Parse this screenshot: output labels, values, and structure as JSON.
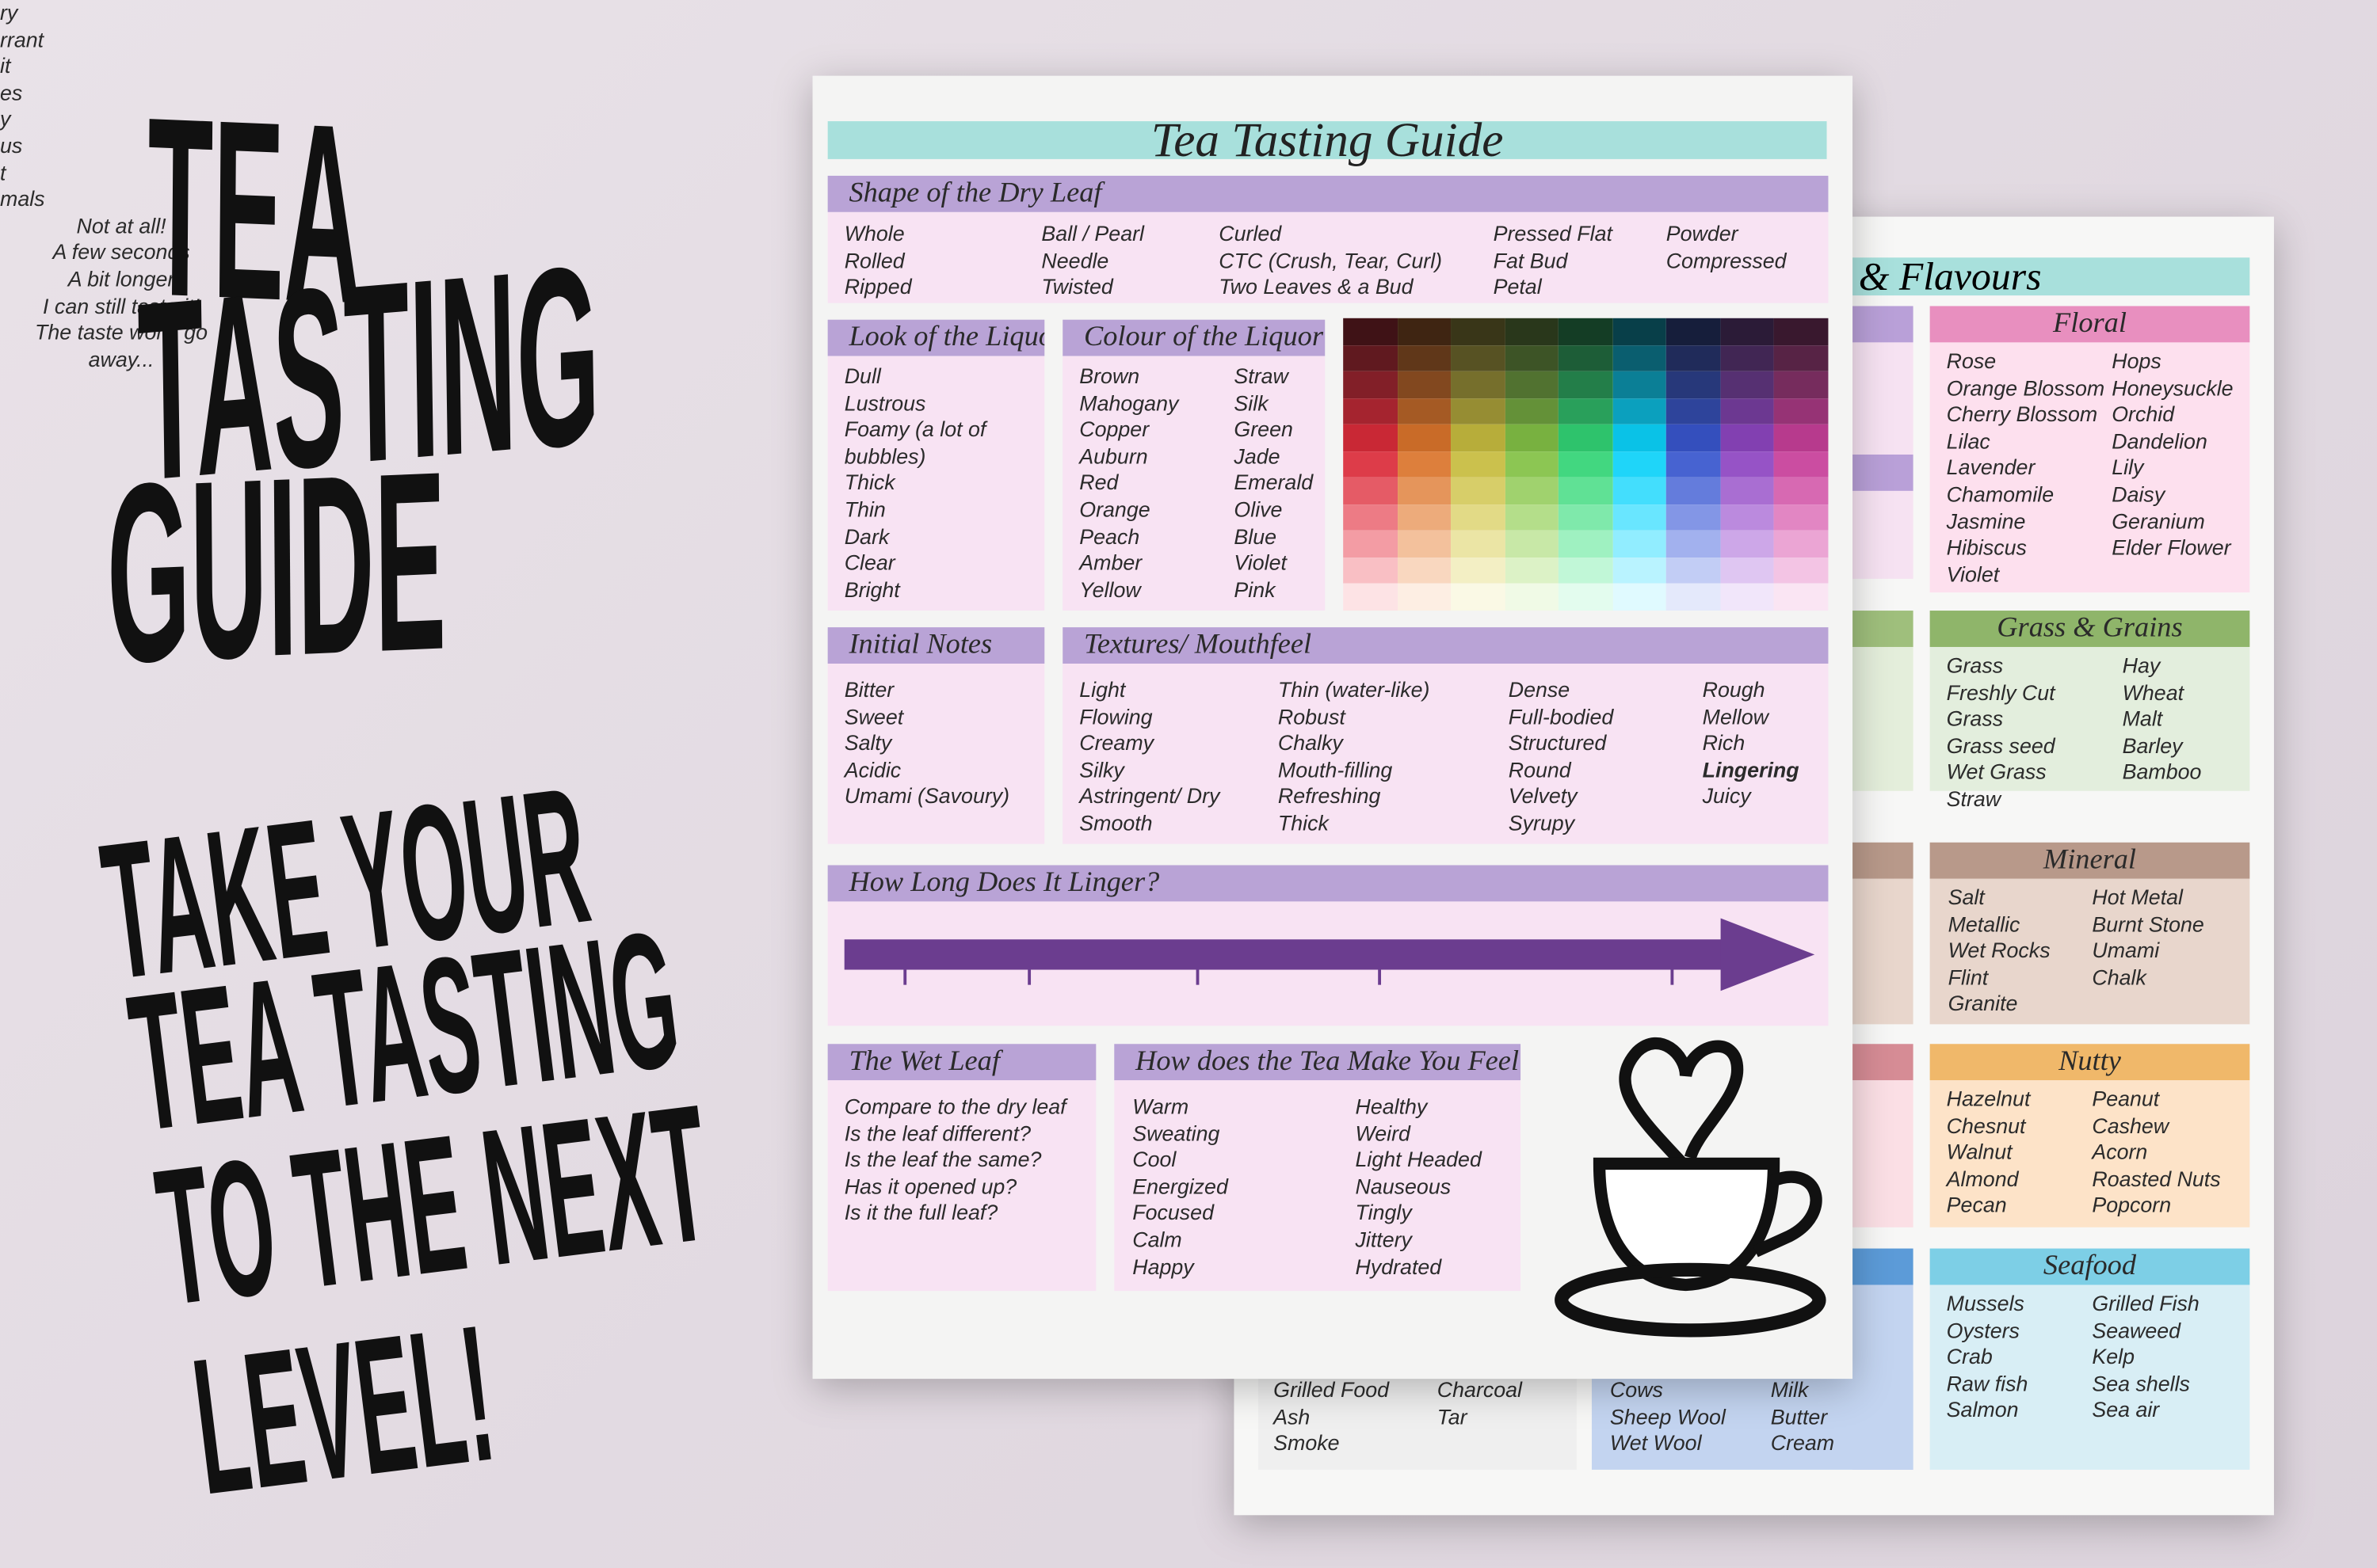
{
  "promo": {
    "headline": [
      "TEA",
      "TASTING",
      "GUIDE"
    ],
    "tagline": [
      "TAKE YOUR",
      "TEA TASTING",
      "TO THE NEXT",
      "LEVEL!"
    ]
  },
  "front_page": {
    "title": "Tea Tasting Guide",
    "sections": [
      {
        "title": "Shape of the Dry Leaf",
        "columns": [
          [
            "Whole",
            "Rolled",
            "Ripped"
          ],
          [
            "Ball / Pearl",
            "Needle",
            "Twisted"
          ],
          [
            "Curled",
            "CTC (Crush, Tear, Curl)",
            "Two Leaves & a Bud"
          ],
          [
            "Pressed Flat",
            "Fat Bud",
            "Petal"
          ],
          [
            "Powder",
            "Compressed"
          ]
        ]
      },
      {
        "title": "Look of the Liquor",
        "columns": [
          [
            "Dull",
            "Lustrous",
            "Foamy (a lot of bubbles)",
            "Thick",
            "Thin",
            "Dark",
            "Clear",
            "Bright"
          ]
        ]
      },
      {
        "title": "Colour of the Liquor",
        "columns": [
          [
            "Brown",
            "Mahogany",
            "Copper",
            "Auburn",
            "Red",
            "Orange",
            "Peach",
            "Amber",
            "Yellow"
          ],
          [
            "Straw",
            "Silk",
            "Green",
            "Jade",
            "Emerald",
            "Olive",
            "Blue",
            "Violet",
            "Pink"
          ]
        ]
      },
      {
        "title": "Initial Notes",
        "columns": [
          [
            "Bitter",
            "Sweet",
            "Salty",
            "Acidic",
            "Umami (Savoury)"
          ]
        ]
      },
      {
        "title": "Textures/ Mouthfeel",
        "columns": [
          [
            "Light",
            "Flowing",
            "Creamy",
            "Silky",
            "Astringent/ Dry",
            "Smooth"
          ],
          [
            "Thin (water-like)",
            "Robust",
            "Chalky",
            "Mouth-filling",
            "Refreshing",
            "Thick"
          ],
          [
            "Dense",
            "Full-bodied",
            "Structured",
            "Round",
            "Velvety",
            "Syrupy"
          ],
          [
            "Rough",
            "Mellow",
            "Rich",
            "Lingering",
            "Juicy"
          ]
        ]
      },
      {
        "title": "The Wet Leaf",
        "columns": [
          [
            "Compare to the dry leaf",
            "Is the leaf different?",
            "Is the leaf the same?",
            "Has it opened up?",
            "Is it the full leaf?"
          ]
        ]
      },
      {
        "title": "How does the Tea Make You Feel?",
        "columns": [
          [
            "Warm",
            "Sweating",
            "Cool",
            "Energized",
            "Focused",
            "Calm",
            "Happy"
          ],
          [
            "Healthy",
            "Weird",
            "Light Headed",
            "Nauseous",
            "Tingly",
            "Jittery",
            "Hydrated"
          ]
        ]
      }
    ],
    "linger": {
      "title": "How Long Does It Linger?",
      "scale": [
        "Not at all!",
        "A few seconds",
        "A bit longer",
        "I can still taste it!",
        "The taste won't go away..."
      ]
    }
  },
  "back_page": {
    "title": "& Flavours",
    "sections": [
      {
        "title": "Floral",
        "columns": [
          [
            "Rose",
            "Orange Blossom",
            "Cherry Blossom",
            "Lilac",
            "Lavender",
            "Chamomile",
            "Jasmine",
            "Hibiscus",
            "Violet"
          ],
          [
            "Hops",
            "Honeysuckle",
            "Orchid",
            "Dandelion",
            "Lily",
            "Daisy",
            "Geranium",
            "Elder Flower"
          ]
        ]
      },
      {
        "title": "Grass & Grains",
        "columns": [
          [
            "Grass",
            "Freshly Cut Grass",
            "Grass seed",
            "Wet Grass",
            "Straw"
          ],
          [
            "Hay",
            "Wheat",
            "Malt",
            "Barley",
            "Bamboo"
          ]
        ]
      },
      {
        "title": "Mineral",
        "columns": [
          [
            "Salt",
            "Metallic",
            "Wet Rocks",
            "Flint",
            "Granite"
          ],
          [
            "Hot Metal",
            "Burnt Stone",
            "Umami",
            "Chalk"
          ]
        ]
      },
      {
        "title": "Nutty",
        "columns": [
          [
            "Hazelnut",
            "Chesnut",
            "Walnut",
            "Almond",
            "Pecan"
          ],
          [
            "Peanut",
            "Cashew",
            "Acorn",
            "Roasted Nuts",
            "Popcorn"
          ]
        ]
      },
      {
        "title": "Seafood",
        "columns": [
          [
            "Mussels",
            "Oysters",
            "Crab",
            "Raw fish",
            "Salmon"
          ],
          [
            "Grilled Fish",
            "Seaweed",
            "Kelp",
            "Sea shells",
            "Sea air"
          ]
        ]
      },
      {
        "columns": [
          [
            "Grilled Food",
            "Ash",
            "Smoke"
          ],
          [
            "Charcoal",
            "Tar"
          ]
        ]
      },
      {
        "columns": [
          [
            "Cows",
            "Sheep Wool",
            "Wet Wool"
          ],
          [
            "Milk",
            "Butter",
            "Cream"
          ]
        ]
      }
    ],
    "fragments": [
      "ry",
      "rrant",
      "it",
      "es",
      "y",
      "us",
      "t",
      "mals"
    ]
  }
}
